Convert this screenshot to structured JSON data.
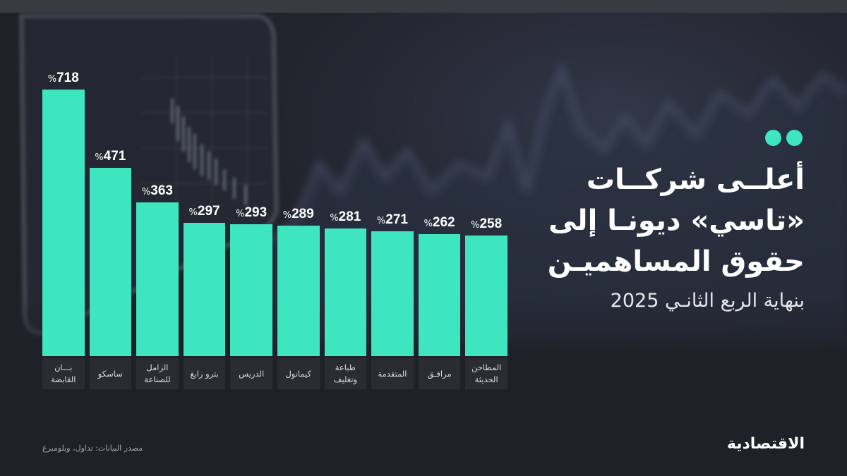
{
  "chart_data": {
    "type": "bar",
    "title_lines": [
      "أعلــى شركــات",
      "«تاسي» ديونـا إلى",
      "حقوق المساهميـن"
    ],
    "subtitle": "بنهاية الربع الثانـي 2025",
    "categories": [
      "بـــان\nالقابضة",
      "ساسكو",
      "الزامل\nللصناعة",
      "بترو رابغ",
      "الدريس",
      "كيمانول",
      "طباعة\nوتغليف",
      "المتقدمة",
      "مرافـق",
      "المطاحن\nالحديثة"
    ],
    "values": [
      718,
      471,
      363,
      297,
      293,
      289,
      281,
      271,
      262,
      258
    ],
    "value_unit": "%",
    "grid": false
  },
  "source": "مصدر البيانات: تداول، وبلومبرغ",
  "logo": "الاقتصادية",
  "colors": {
    "bar": "#3ee6c0",
    "accent_dots": "#3ee6c0",
    "background": "#1e2128",
    "text": "#ffffff",
    "muted_text": "#a3a6ad"
  }
}
